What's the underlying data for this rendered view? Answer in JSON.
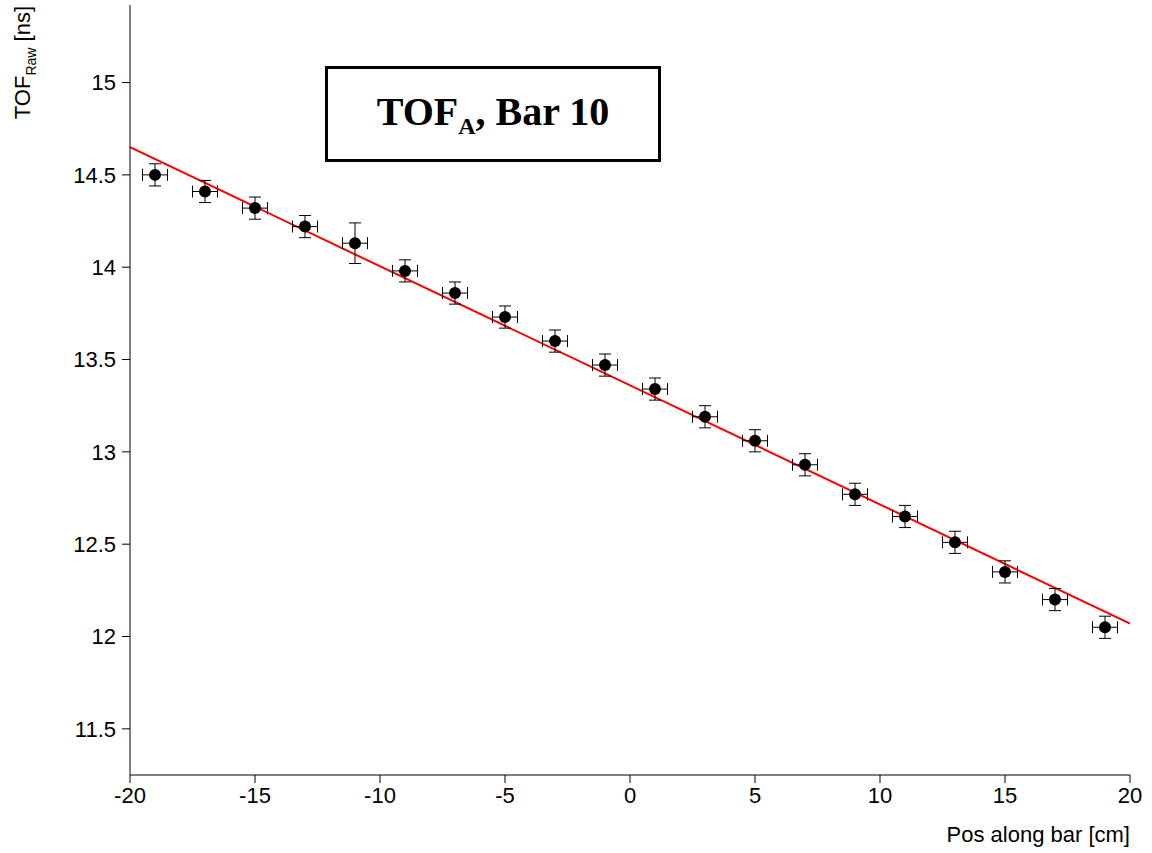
{
  "chart_data": {
    "type": "scatter",
    "annotation": {
      "text": "TOF",
      "subscript": "A",
      "after": ", Bar 10"
    },
    "x_label": "Pos along bar [cm]",
    "y_label": {
      "text": "TOF",
      "subscript": "Raw",
      "after": " [ns]"
    },
    "x": [
      -19,
      -17,
      -15,
      -13,
      -11,
      -9,
      -7,
      -5,
      -3,
      -1,
      1,
      3,
      5,
      7,
      9,
      11,
      13,
      15,
      17,
      19
    ],
    "values": [
      14.5,
      14.41,
      14.32,
      14.22,
      14.13,
      13.98,
      13.86,
      13.73,
      13.6,
      13.47,
      13.34,
      13.19,
      13.06,
      12.93,
      12.77,
      12.65,
      12.51,
      12.35,
      12.2,
      12.05
    ],
    "yerr": [
      0.06,
      0.06,
      0.06,
      0.06,
      0.11,
      0.06,
      0.06,
      0.06,
      0.06,
      0.06,
      0.06,
      0.06,
      0.06,
      0.06,
      0.06,
      0.06,
      0.06,
      0.06,
      0.06,
      0.06
    ],
    "xerr": [
      0.5,
      0.5,
      0.5,
      0.5,
      0.5,
      0.5,
      0.5,
      0.5,
      0.5,
      0.5,
      0.5,
      0.5,
      0.5,
      0.5,
      0.5,
      0.5,
      0.5,
      0.5,
      0.5,
      0.5
    ],
    "color": "#000000",
    "marker": "circle",
    "fit": {
      "x": [
        -20,
        20
      ],
      "values": [
        14.65,
        12.07
      ],
      "color": "#ff0000",
      "line_style": "solid"
    },
    "xlim": [
      -20,
      20
    ],
    "xticks": [
      -20,
      -15,
      -10,
      -5,
      0,
      5,
      10,
      15,
      20
    ],
    "ylim": [
      11.25,
      15.42
    ],
    "yticks": [
      11.5,
      12,
      12.5,
      13,
      13.5,
      14,
      14.5,
      15
    ],
    "grid": false
  }
}
